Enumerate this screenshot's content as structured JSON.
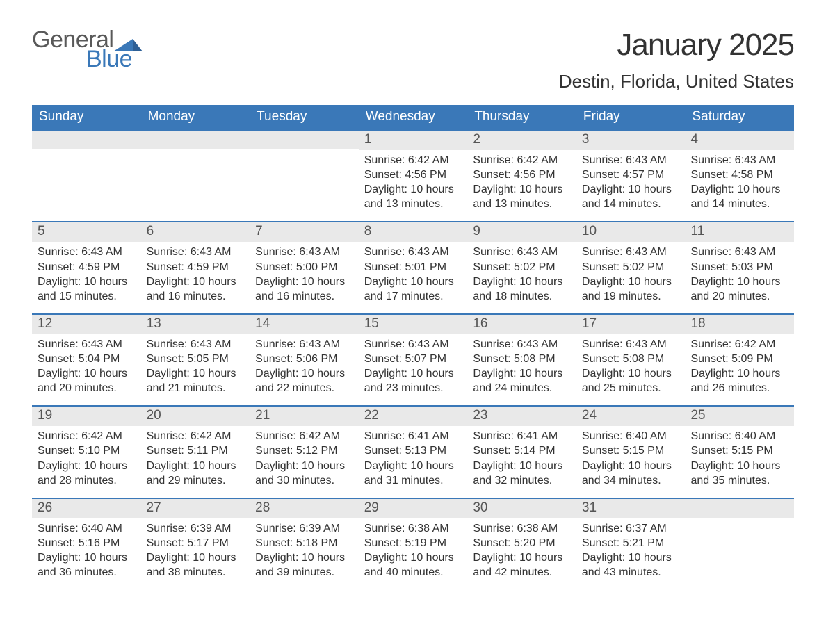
{
  "colors": {
    "header_bg": "#3a78b8",
    "header_text": "#ffffff",
    "daynum_bg": "#e9e9e9",
    "daynum_text": "#555555",
    "body_text": "#333333",
    "rule": "#3a78b8",
    "logo_gray": "#595959",
    "logo_blue": "#3a78b8",
    "page_bg": "#ffffff"
  },
  "logo": {
    "part1": "General",
    "part2": "Blue"
  },
  "title": "January 2025",
  "location": "Destin, Florida, United States",
  "day_headers": [
    "Sunday",
    "Monday",
    "Tuesday",
    "Wednesday",
    "Thursday",
    "Friday",
    "Saturday"
  ],
  "label_sunrise": "Sunrise:",
  "label_sunset": "Sunset:",
  "label_daylight": "Daylight:",
  "weeks": [
    [
      {
        "blank": true
      },
      {
        "blank": true
      },
      {
        "blank": true
      },
      {
        "n": "1",
        "sunrise": "6:42 AM",
        "sunset": "4:56 PM",
        "daylight": "10 hours and 13 minutes."
      },
      {
        "n": "2",
        "sunrise": "6:42 AM",
        "sunset": "4:56 PM",
        "daylight": "10 hours and 13 minutes."
      },
      {
        "n": "3",
        "sunrise": "6:43 AM",
        "sunset": "4:57 PM",
        "daylight": "10 hours and 14 minutes."
      },
      {
        "n": "4",
        "sunrise": "6:43 AM",
        "sunset": "4:58 PM",
        "daylight": "10 hours and 14 minutes."
      }
    ],
    [
      {
        "n": "5",
        "sunrise": "6:43 AM",
        "sunset": "4:59 PM",
        "daylight": "10 hours and 15 minutes."
      },
      {
        "n": "6",
        "sunrise": "6:43 AM",
        "sunset": "4:59 PM",
        "daylight": "10 hours and 16 minutes."
      },
      {
        "n": "7",
        "sunrise": "6:43 AM",
        "sunset": "5:00 PM",
        "daylight": "10 hours and 16 minutes."
      },
      {
        "n": "8",
        "sunrise": "6:43 AM",
        "sunset": "5:01 PM",
        "daylight": "10 hours and 17 minutes."
      },
      {
        "n": "9",
        "sunrise": "6:43 AM",
        "sunset": "5:02 PM",
        "daylight": "10 hours and 18 minutes."
      },
      {
        "n": "10",
        "sunrise": "6:43 AM",
        "sunset": "5:02 PM",
        "daylight": "10 hours and 19 minutes."
      },
      {
        "n": "11",
        "sunrise": "6:43 AM",
        "sunset": "5:03 PM",
        "daylight": "10 hours and 20 minutes."
      }
    ],
    [
      {
        "n": "12",
        "sunrise": "6:43 AM",
        "sunset": "5:04 PM",
        "daylight": "10 hours and 20 minutes."
      },
      {
        "n": "13",
        "sunrise": "6:43 AM",
        "sunset": "5:05 PM",
        "daylight": "10 hours and 21 minutes."
      },
      {
        "n": "14",
        "sunrise": "6:43 AM",
        "sunset": "5:06 PM",
        "daylight": "10 hours and 22 minutes."
      },
      {
        "n": "15",
        "sunrise": "6:43 AM",
        "sunset": "5:07 PM",
        "daylight": "10 hours and 23 minutes."
      },
      {
        "n": "16",
        "sunrise": "6:43 AM",
        "sunset": "5:08 PM",
        "daylight": "10 hours and 24 minutes."
      },
      {
        "n": "17",
        "sunrise": "6:43 AM",
        "sunset": "5:08 PM",
        "daylight": "10 hours and 25 minutes."
      },
      {
        "n": "18",
        "sunrise": "6:42 AM",
        "sunset": "5:09 PM",
        "daylight": "10 hours and 26 minutes."
      }
    ],
    [
      {
        "n": "19",
        "sunrise": "6:42 AM",
        "sunset": "5:10 PM",
        "daylight": "10 hours and 28 minutes."
      },
      {
        "n": "20",
        "sunrise": "6:42 AM",
        "sunset": "5:11 PM",
        "daylight": "10 hours and 29 minutes."
      },
      {
        "n": "21",
        "sunrise": "6:42 AM",
        "sunset": "5:12 PM",
        "daylight": "10 hours and 30 minutes."
      },
      {
        "n": "22",
        "sunrise": "6:41 AM",
        "sunset": "5:13 PM",
        "daylight": "10 hours and 31 minutes."
      },
      {
        "n": "23",
        "sunrise": "6:41 AM",
        "sunset": "5:14 PM",
        "daylight": "10 hours and 32 minutes."
      },
      {
        "n": "24",
        "sunrise": "6:40 AM",
        "sunset": "5:15 PM",
        "daylight": "10 hours and 34 minutes."
      },
      {
        "n": "25",
        "sunrise": "6:40 AM",
        "sunset": "5:15 PM",
        "daylight": "10 hours and 35 minutes."
      }
    ],
    [
      {
        "n": "26",
        "sunrise": "6:40 AM",
        "sunset": "5:16 PM",
        "daylight": "10 hours and 36 minutes."
      },
      {
        "n": "27",
        "sunrise": "6:39 AM",
        "sunset": "5:17 PM",
        "daylight": "10 hours and 38 minutes."
      },
      {
        "n": "28",
        "sunrise": "6:39 AM",
        "sunset": "5:18 PM",
        "daylight": "10 hours and 39 minutes."
      },
      {
        "n": "29",
        "sunrise": "6:38 AM",
        "sunset": "5:19 PM",
        "daylight": "10 hours and 40 minutes."
      },
      {
        "n": "30",
        "sunrise": "6:38 AM",
        "sunset": "5:20 PM",
        "daylight": "10 hours and 42 minutes."
      },
      {
        "n": "31",
        "sunrise": "6:37 AM",
        "sunset": "5:21 PM",
        "daylight": "10 hours and 43 minutes."
      },
      {
        "blank": true
      }
    ]
  ]
}
